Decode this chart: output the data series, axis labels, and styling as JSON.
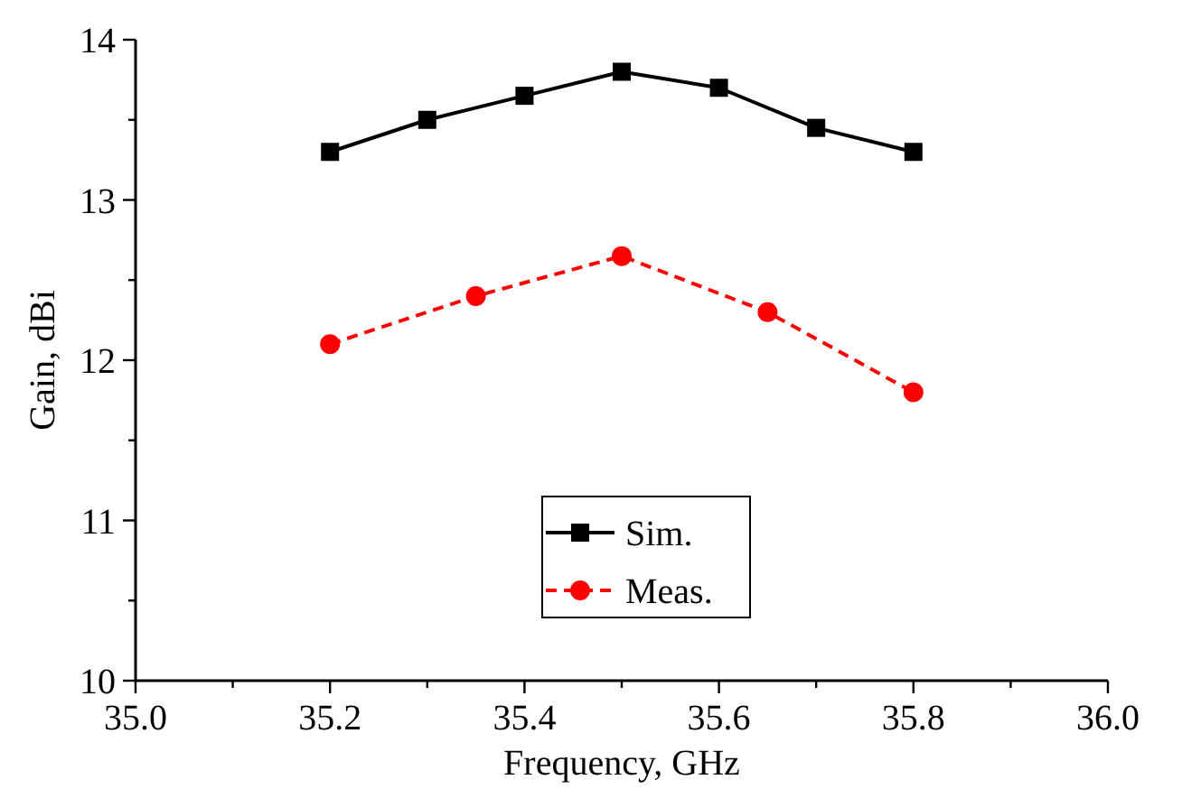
{
  "chart_data": {
    "type": "line",
    "xlabel": "Frequency, GHz",
    "ylabel": "Gain, dBi",
    "xlim": [
      35.0,
      36.0
    ],
    "ylim": [
      10,
      14
    ],
    "xticks": [
      {
        "value": 35.0,
        "label": "35.0"
      },
      {
        "value": 35.1,
        "label": null
      },
      {
        "value": 35.2,
        "label": "35.2"
      },
      {
        "value": 35.3,
        "label": null
      },
      {
        "value": 35.4,
        "label": "35.4"
      },
      {
        "value": 35.5,
        "label": null
      },
      {
        "value": 35.6,
        "label": "35.6"
      },
      {
        "value": 35.7,
        "label": null
      },
      {
        "value": 35.8,
        "label": "35.8"
      },
      {
        "value": 35.9,
        "label": null
      },
      {
        "value": 36.0,
        "label": "36.0"
      }
    ],
    "yticks": [
      10,
      {
        "value": 10.5,
        "label": null
      },
      11,
      {
        "value": 11.5,
        "label": null
      },
      12,
      {
        "value": 12.5,
        "label": null
      },
      13,
      {
        "value": 13.5,
        "label": null
      },
      14
    ],
    "legend": "bottom",
    "grid": false,
    "series": [
      {
        "name": "Sim.",
        "color": "#000000",
        "marker": "square",
        "line_style": "solid",
        "x": [
          35.2,
          35.3,
          35.4,
          35.5,
          35.6,
          35.7,
          35.8
        ],
        "values": [
          13.3,
          13.5,
          13.65,
          13.8,
          13.7,
          13.45,
          13.3
        ]
      },
      {
        "name": "Meas.",
        "color": "#ff0000",
        "marker": "circle",
        "line_style": "dashed",
        "x": [
          35.2,
          35.35,
          35.5,
          35.65,
          35.8
        ],
        "values": [
          12.1,
          12.4,
          12.65,
          12.3,
          11.8
        ]
      }
    ]
  }
}
